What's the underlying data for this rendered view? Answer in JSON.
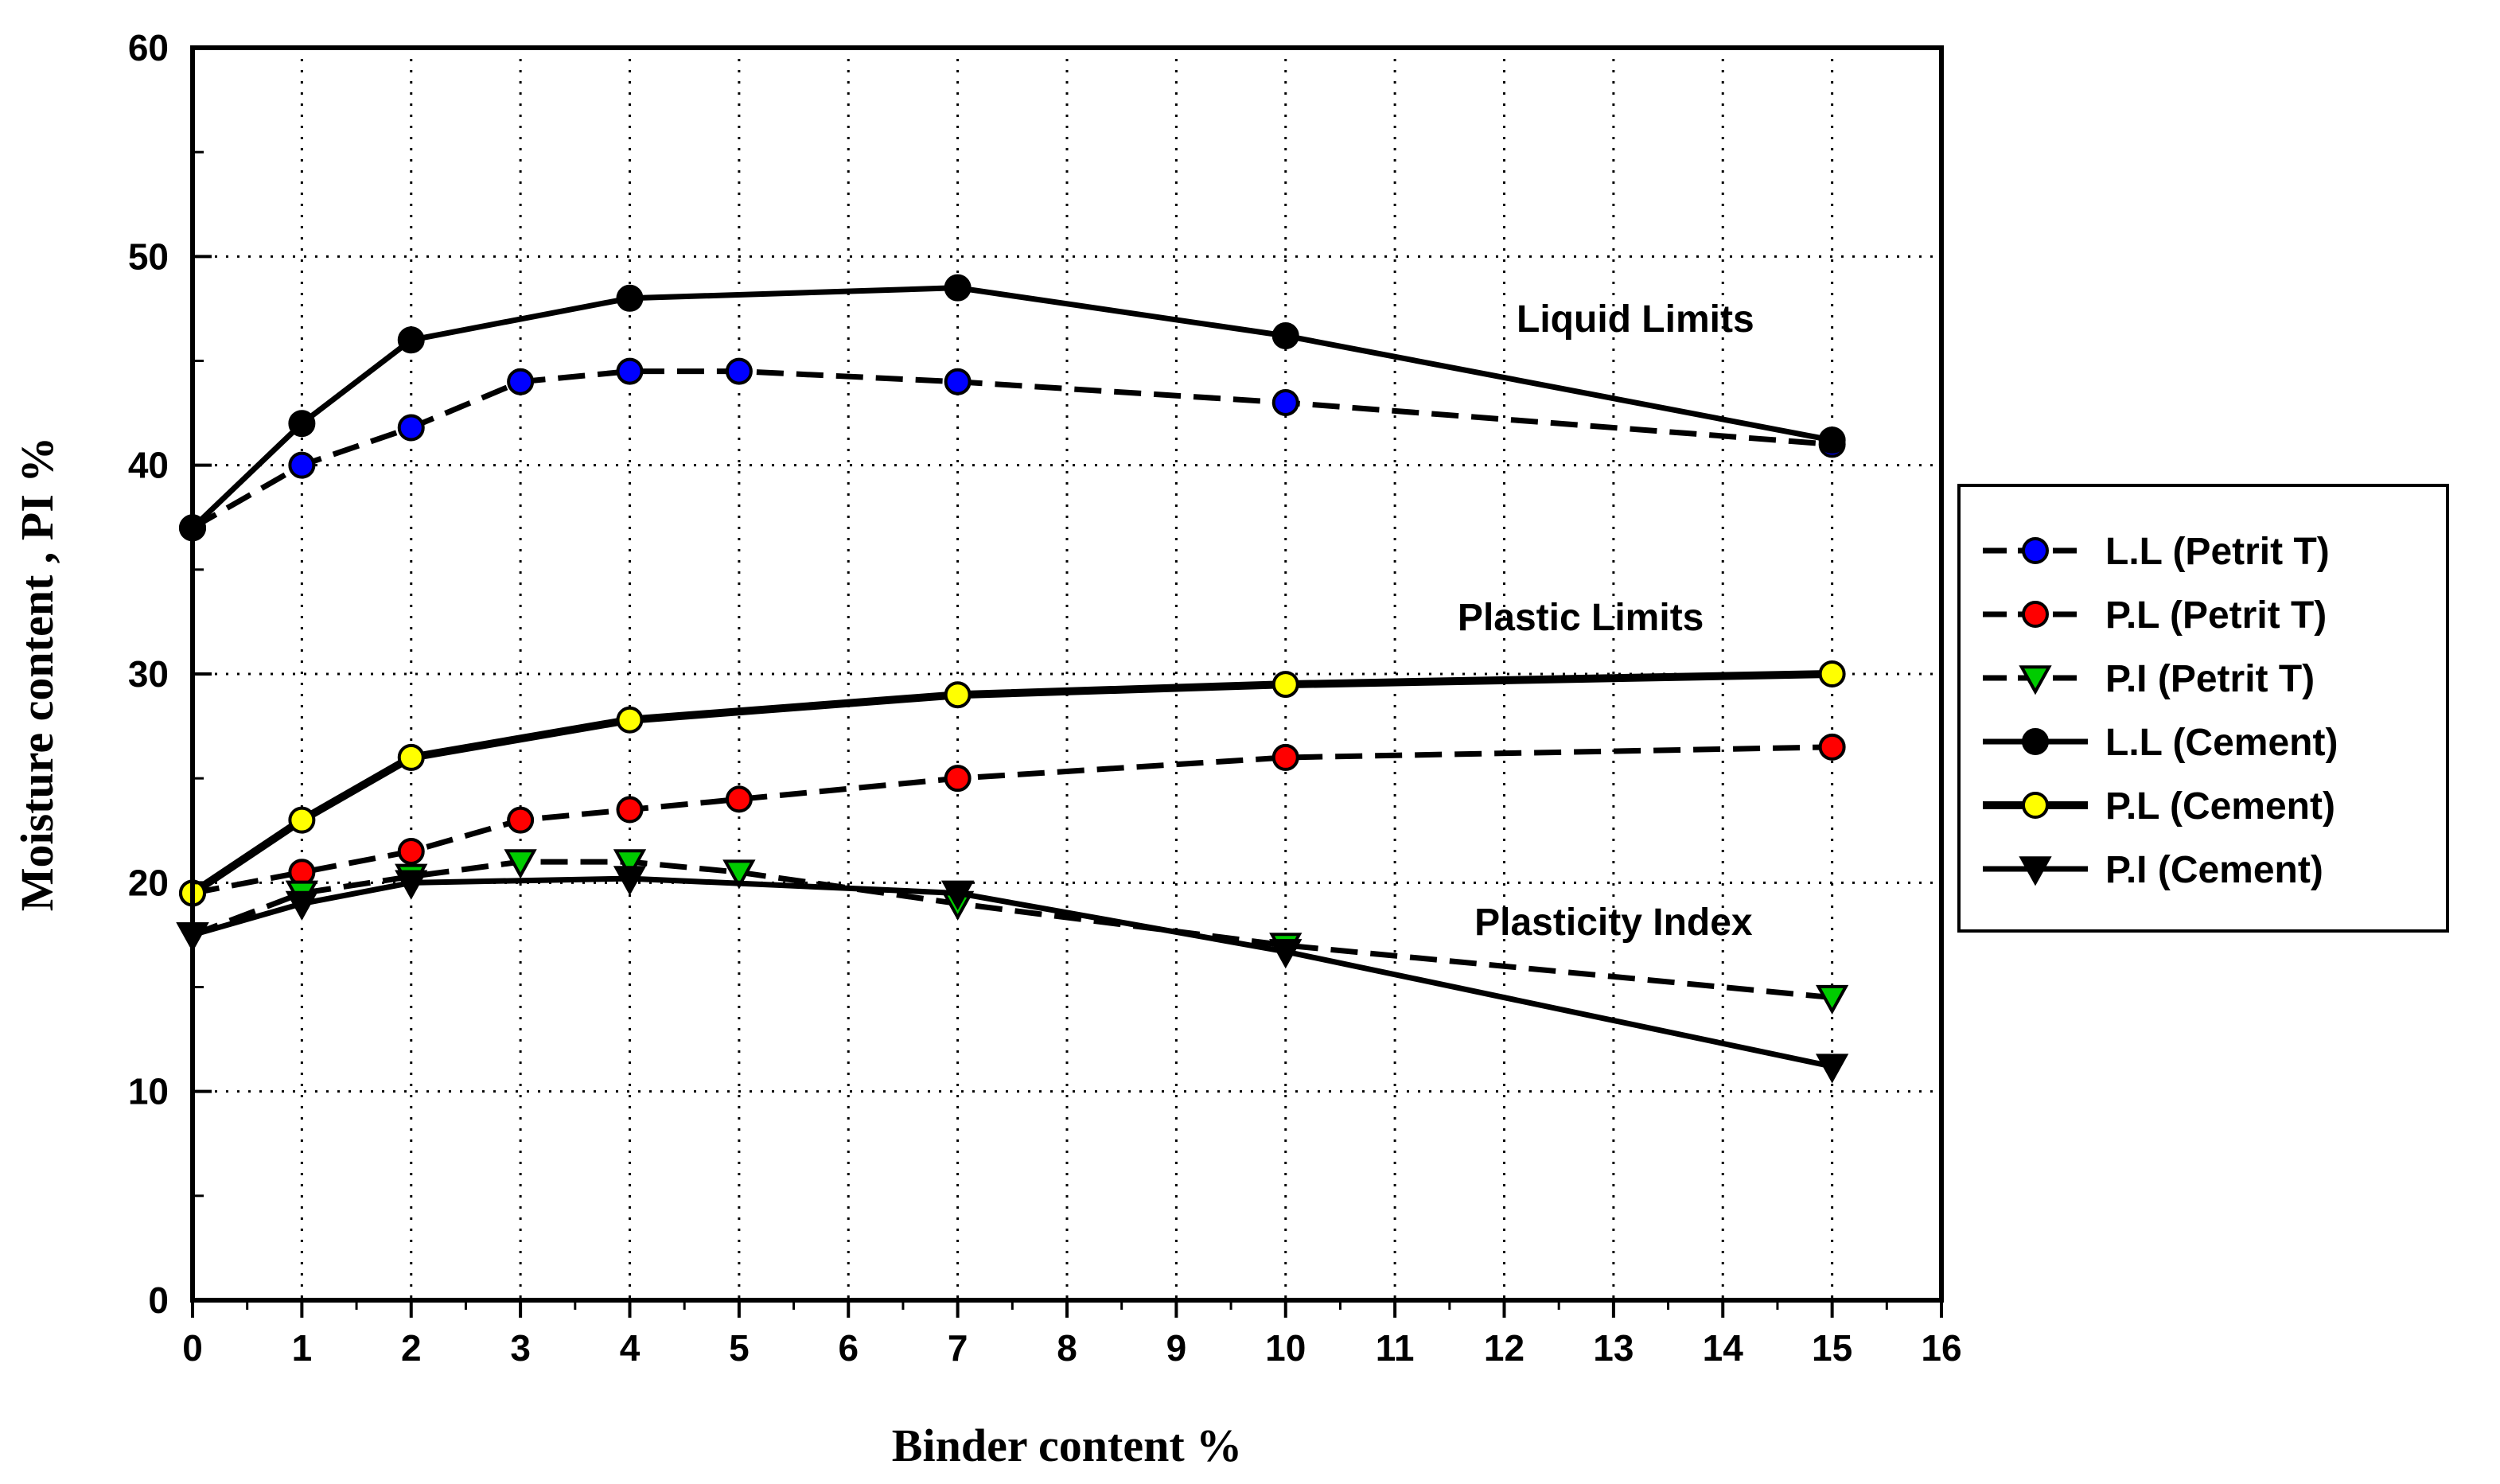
{
  "chart_data": {
    "type": "line",
    "title": "",
    "xlabel": "Binder content %",
    "ylabel": "Moisture content , PI %",
    "xlim": [
      0,
      16
    ],
    "ylim": [
      0,
      60
    ],
    "x_ticks": [
      "0",
      "1",
      "2",
      "3",
      "4",
      "5",
      "6",
      "7",
      "8",
      "9",
      "10",
      "11",
      "12",
      "13",
      "14",
      "15",
      "16"
    ],
    "y_ticks": [
      "0",
      "10",
      "20",
      "30",
      "40",
      "50",
      "60"
    ],
    "grid": true,
    "legend_position": "right",
    "annotations": [
      {
        "text": "Liquid Limits",
        "x": 13.2,
        "y": 46.4
      },
      {
        "text": "Plastic Limits",
        "x": 12.7,
        "y": 32.1
      },
      {
        "text": "Plasticity  Index",
        "x": 13.0,
        "y": 17.5
      }
    ],
    "series": [
      {
        "name": "L.L (Petrit T)",
        "marker": "circle",
        "color": "#0000ff",
        "dashed": true,
        "weight": "normal",
        "x": [
          0,
          1,
          2,
          3,
          4,
          5,
          7,
          10,
          15
        ],
        "values": [
          37,
          40,
          41.8,
          44,
          44.5,
          44.5,
          44,
          43,
          41
        ]
      },
      {
        "name": "P.L (Petrit T)",
        "marker": "circle",
        "color": "#ff0000",
        "dashed": true,
        "weight": "normal",
        "x": [
          0,
          1,
          2,
          3,
          4,
          5,
          7,
          10,
          15
        ],
        "values": [
          19.5,
          20.5,
          21.5,
          23,
          23.5,
          24,
          25,
          26,
          26.5
        ]
      },
      {
        "name": "P.I  (Petrit T)",
        "marker": "triangle-down",
        "color": "#00cc00",
        "dashed": true,
        "weight": "normal",
        "x": [
          0,
          1,
          2,
          3,
          4,
          5,
          7,
          10,
          15
        ],
        "values": [
          17.5,
          19.5,
          20.3,
          21,
          21,
          20.5,
          19,
          17,
          14.5
        ]
      },
      {
        "name": "L.L (Cement)",
        "marker": "circle",
        "color": "#000000",
        "dashed": false,
        "weight": "normal",
        "x": [
          0,
          1,
          2,
          4,
          7,
          10,
          15
        ],
        "values": [
          37,
          42,
          46,
          48,
          48.5,
          46.2,
          41.2
        ]
      },
      {
        "name": "P.L (Cement)",
        "marker": "circle",
        "color": "#ffff00",
        "dashed": false,
        "weight": "bold",
        "x": [
          0,
          1,
          2,
          4,
          7,
          10,
          15
        ],
        "values": [
          19.5,
          23,
          26,
          27.8,
          29,
          29.5,
          30
        ]
      },
      {
        "name": "P.I (Cement)",
        "marker": "triangle-down",
        "color": "#000000",
        "dashed": false,
        "weight": "normal",
        "x": [
          0,
          1,
          2,
          4,
          7,
          10,
          15
        ],
        "values": [
          17.5,
          19,
          20,
          20.2,
          19.5,
          16.7,
          11.2
        ]
      }
    ]
  }
}
